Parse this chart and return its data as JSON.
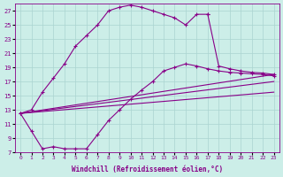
{
  "xlabel": "Windchill (Refroidissement éolien,°C)",
  "background_color": "#cceee8",
  "grid_color": "#aad4d0",
  "line_color": "#880088",
  "xlim": [
    -0.5,
    23.5
  ],
  "ylim": [
    7,
    28
  ],
  "x_ticks": [
    0,
    1,
    2,
    3,
    4,
    5,
    6,
    7,
    8,
    9,
    10,
    11,
    12,
    13,
    14,
    15,
    16,
    17,
    18,
    19,
    20,
    21,
    22,
    23
  ],
  "y_ticks": [
    7,
    9,
    11,
    13,
    15,
    17,
    19,
    21,
    23,
    25,
    27
  ],
  "curve_up_x": [
    0,
    1,
    2,
    3,
    4,
    5,
    6,
    7,
    8,
    9,
    10,
    11,
    12,
    13,
    14,
    15,
    16,
    17
  ],
  "curve_up_y": [
    12.5,
    13.0,
    15.5,
    17.5,
    19.5,
    22.0,
    23.5,
    25.0,
    27.0,
    27.5,
    27.8,
    27.5,
    27.0,
    26.5,
    26.0,
    25.0,
    26.5,
    26.5
  ],
  "curve_down_x": [
    17,
    18,
    19,
    20,
    21,
    22,
    23
  ],
  "curve_down_y": [
    26.5,
    19.2,
    18.8,
    18.5,
    18.3,
    18.2,
    18.0
  ],
  "curve2_x": [
    0,
    1,
    2,
    3,
    4,
    5,
    6,
    7,
    8,
    9,
    10,
    11,
    12,
    13,
    14,
    15,
    16,
    17,
    18,
    19,
    20,
    21,
    22,
    23
  ],
  "curve2_y": [
    12.5,
    10.0,
    7.5,
    7.8,
    7.5,
    7.5,
    7.5,
    9.5,
    11.5,
    13.0,
    14.5,
    15.8,
    17.0,
    18.5,
    19.0,
    19.5,
    19.2,
    18.8,
    18.5,
    18.3,
    18.2,
    18.1,
    18.0,
    17.8
  ],
  "line1_x": [
    0,
    23
  ],
  "line1_y": [
    12.5,
    18.0
  ],
  "line2_x": [
    0,
    23
  ],
  "line2_y": [
    12.5,
    17.0
  ],
  "line3_x": [
    0,
    23
  ],
  "line3_y": [
    12.5,
    15.5
  ]
}
